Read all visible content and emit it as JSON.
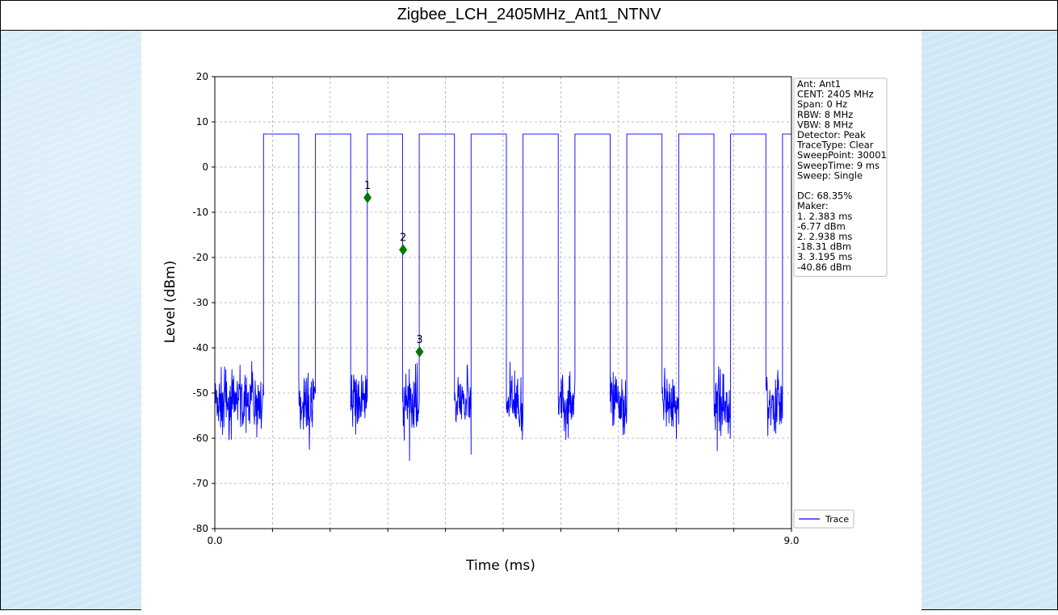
{
  "page": {
    "title": "Zigbee_LCH_2405MHz_Ant1_NTNV"
  },
  "chart_data": {
    "type": "line",
    "title": "",
    "xlabel": "Time (ms)",
    "ylabel": "Level (dBm)",
    "xlim": [
      0,
      9
    ],
    "ylim": [
      -80,
      20
    ],
    "x_tick_labels": [
      "0.0",
      "9.0"
    ],
    "x_minor_ticks": [
      0.9,
      1.8,
      2.7,
      3.6,
      4.5,
      5.4,
      6.3,
      7.2,
      8.1
    ],
    "y_ticks": [
      20,
      10,
      0,
      -10,
      -20,
      -30,
      -40,
      -50,
      -60,
      -70,
      -80
    ],
    "grid": true,
    "trace_color": "#0000ff",
    "marker_color": "#007a00",
    "series": [
      {
        "name": "Trace",
        "high_level_dbm": 7.3,
        "noise_floor_dbm": -52,
        "noise_min_dbm": -65,
        "on_intervals_ms": [
          [
            0.76,
            1.31
          ],
          [
            1.57,
            2.12
          ],
          [
            2.38,
            2.93
          ],
          [
            3.19,
            3.74
          ],
          [
            4.0,
            4.55
          ],
          [
            4.81,
            5.36
          ],
          [
            5.62,
            6.17
          ],
          [
            6.43,
            6.98
          ],
          [
            7.24,
            7.79
          ],
          [
            8.05,
            8.6
          ],
          [
            8.86,
            9.0
          ]
        ]
      }
    ],
    "markers": [
      {
        "label": "1",
        "x": 2.383,
        "y": -6.77
      },
      {
        "label": "2",
        "x": 2.938,
        "y": -18.31
      },
      {
        "label": "3",
        "x": 3.195,
        "y": -40.86
      }
    ],
    "info_box": [
      "Ant: Ant1",
      "CENT: 2405 MHz",
      "Span: 0 Hz",
      "RBW: 8 MHz",
      "VBW: 8 MHz",
      "Detector: Peak",
      "TraceType: Clear",
      "SweepPoint: 30001",
      "SweepTime: 9 ms",
      "Sweep: Single",
      "",
      "DC: 68.35%",
      "Maker:",
      "1. 2.383 ms",
      "    -6.77 dBm",
      "2. 2.938 ms",
      "    -18.31 dBm",
      "3. 3.195 ms",
      "    -40.86 dBm"
    ],
    "legend": {
      "position": "bottom-right",
      "label": "Trace"
    }
  }
}
